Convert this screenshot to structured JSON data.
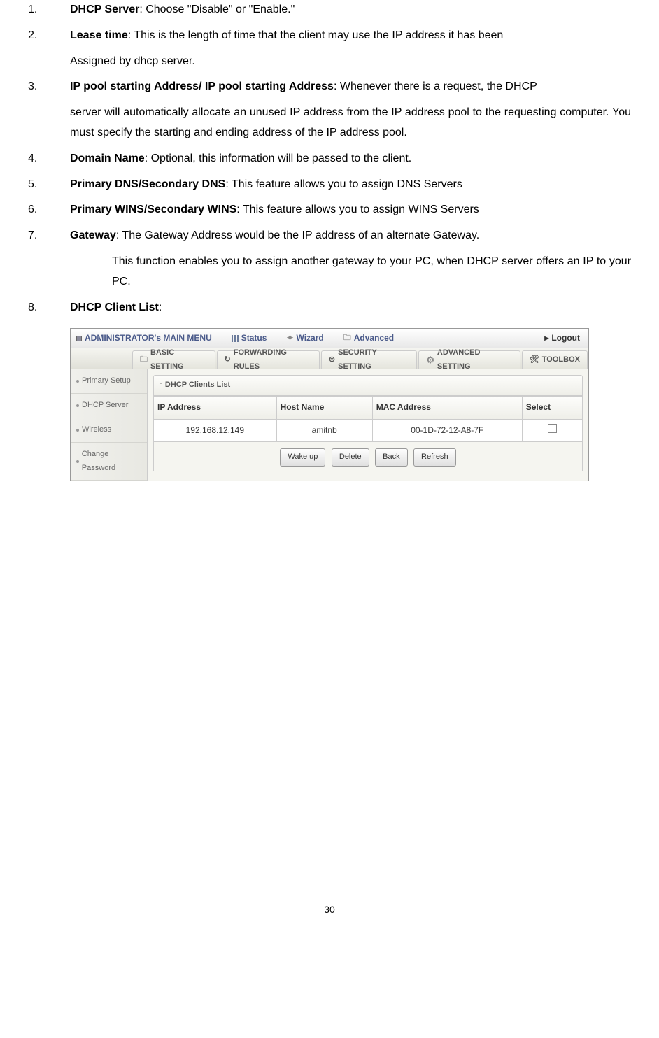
{
  "items": [
    {
      "num": "1.",
      "bold": "DHCP Server",
      "text": ": Choose \"Disable\" or \"Enable.\""
    },
    {
      "num": "2.",
      "bold": "Lease time",
      "text": ": This is the length of time that the client may use the IP address it has been"
    },
    {
      "indent": 1,
      "text": "Assigned by dhcp server."
    },
    {
      "num": "3.",
      "bold": "IP pool starting Address/ IP pool starting Address",
      "text": ": Whenever there is a request, the DHCP"
    },
    {
      "indent": 1,
      "text": "server will automatically allocate an unused IP address from the IP address pool to the requesting computer. You must specify the starting and ending address of the IP address pool."
    },
    {
      "num": "4.",
      "bold": "Domain Name",
      "text": ": Optional, this information will be passed to the client."
    },
    {
      "num": "5.",
      "bold": "Primary DNS/Secondary DNS",
      "text": ": This feature allows you to assign DNS Servers"
    },
    {
      "num": "6.",
      "bold": "Primary WINS/Secondary WINS",
      "text": ": This feature allows you to assign WINS Servers"
    },
    {
      "num": "7.",
      "bold": "Gateway",
      "text": ": The Gateway Address would be the IP address of an alternate Gateway."
    },
    {
      "indent": 2,
      "text": "This function enables you to assign another gateway to your PC, when DHCP server offers an IP to your PC."
    },
    {
      "num": "8.",
      "bold": "DHCP Client List",
      "text": ":"
    }
  ],
  "ui": {
    "topMenu": {
      "title": "ADMINISTRATOR's MAIN MENU",
      "status": "Status",
      "wizard": "Wizard",
      "advanced": "Advanced",
      "logout": "Logout"
    },
    "tabs": {
      "basic": "BASIC SETTING",
      "forwarding": "FORWARDING RULES",
      "security": "SECURITY SETTING",
      "advanced": "ADVANCED SETTING",
      "toolbox": "TOOLBOX"
    },
    "sidebar": {
      "primary": "Primary Setup",
      "dhcp": "DHCP Server",
      "wireless": "Wireless",
      "password": "Change Password"
    },
    "panel": {
      "title": "DHCP Clients List",
      "headers": {
        "ip": "IP Address",
        "host": "Host Name",
        "mac": "MAC Address",
        "select": "Select"
      },
      "row": {
        "ip": "192.168.12.149",
        "host": "amitnb",
        "mac": "00-1D-72-12-A8-7F"
      },
      "buttons": {
        "wakeup": "Wake up",
        "delete": "Delete",
        "back": "Back",
        "refresh": "Refresh"
      }
    }
  },
  "pageNum": "30"
}
